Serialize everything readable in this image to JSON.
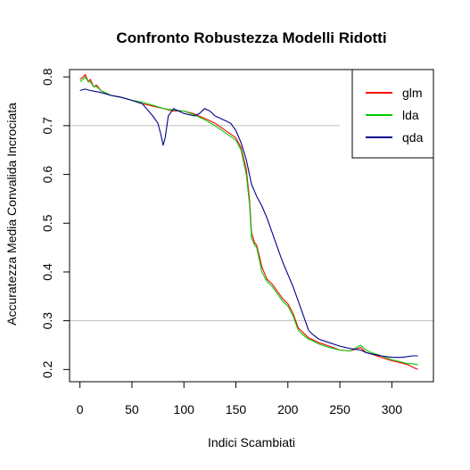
{
  "chart_data": {
    "type": "line",
    "title": "Confronto Robustezza Modelli Ridotti",
    "xlabel": "Indici Scambiati",
    "ylabel": "Accuratezza Media Convalida Incrociata",
    "xlim": [
      -10,
      340
    ],
    "ylim": [
      0.175,
      0.815
    ],
    "xticks": [
      0,
      50,
      100,
      150,
      200,
      250,
      300
    ],
    "yticks": [
      0.2,
      0.3,
      0.4,
      0.5,
      0.6,
      0.7,
      0.8
    ],
    "reference_lines": [
      {
        "y": 0.7,
        "x_end": 250,
        "color": "#bebebe"
      },
      {
        "y": 0.3,
        "color": "#bebebe"
      }
    ],
    "legend": {
      "position": "top-right"
    },
    "series": [
      {
        "name": "glm",
        "color": "#ff0000",
        "x": [
          0,
          3,
          5,
          8,
          10,
          13,
          16,
          20,
          25,
          30,
          40,
          50,
          60,
          70,
          80,
          90,
          100,
          110,
          120,
          130,
          140,
          150,
          155,
          160,
          163,
          165,
          168,
          170,
          175,
          180,
          185,
          190,
          195,
          200,
          205,
          210,
          215,
          220,
          225,
          230,
          240,
          250,
          260,
          270,
          275,
          280,
          290,
          300,
          310,
          315,
          320,
          325
        ],
        "y": [
          0.795,
          0.8,
          0.805,
          0.79,
          0.795,
          0.78,
          0.783,
          0.772,
          0.767,
          0.762,
          0.758,
          0.752,
          0.745,
          0.74,
          0.735,
          0.73,
          0.73,
          0.724,
          0.715,
          0.705,
          0.69,
          0.675,
          0.655,
          0.61,
          0.55,
          0.48,
          0.46,
          0.455,
          0.41,
          0.385,
          0.375,
          0.36,
          0.345,
          0.335,
          0.315,
          0.285,
          0.275,
          0.265,
          0.26,
          0.255,
          0.248,
          0.24,
          0.238,
          0.245,
          0.235,
          0.232,
          0.225,
          0.218,
          0.213,
          0.21,
          0.205,
          0.2
        ]
      },
      {
        "name": "lda",
        "color": "#00cc00",
        "x": [
          0,
          3,
          5,
          8,
          10,
          13,
          16,
          20,
          25,
          30,
          40,
          50,
          60,
          70,
          80,
          90,
          100,
          110,
          120,
          130,
          140,
          150,
          155,
          160,
          163,
          165,
          168,
          170,
          175,
          180,
          185,
          190,
          195,
          200,
          205,
          210,
          215,
          220,
          225,
          230,
          240,
          250,
          260,
          270,
          275,
          280,
          290,
          300,
          310,
          315,
          320,
          325
        ],
        "y": [
          0.79,
          0.795,
          0.8,
          0.79,
          0.79,
          0.78,
          0.78,
          0.772,
          0.767,
          0.762,
          0.758,
          0.752,
          0.748,
          0.742,
          0.735,
          0.732,
          0.73,
          0.722,
          0.712,
          0.7,
          0.685,
          0.67,
          0.65,
          0.6,
          0.54,
          0.47,
          0.455,
          0.45,
          0.4,
          0.38,
          0.37,
          0.355,
          0.34,
          0.33,
          0.31,
          0.28,
          0.27,
          0.262,
          0.258,
          0.252,
          0.245,
          0.24,
          0.238,
          0.25,
          0.24,
          0.235,
          0.228,
          0.22,
          0.215,
          0.212,
          0.212,
          0.21
        ]
      },
      {
        "name": "qda",
        "color": "#00008b",
        "x": [
          0,
          5,
          10,
          15,
          20,
          25,
          30,
          40,
          50,
          60,
          70,
          75,
          78,
          80,
          82,
          85,
          90,
          100,
          110,
          115,
          120,
          125,
          130,
          140,
          145,
          150,
          155,
          160,
          165,
          170,
          175,
          180,
          185,
          190,
          195,
          200,
          205,
          210,
          215,
          220,
          225,
          230,
          240,
          250,
          260,
          270,
          275,
          280,
          290,
          300,
          310,
          320,
          325
        ],
        "y": [
          0.772,
          0.775,
          0.772,
          0.77,
          0.768,
          0.765,
          0.762,
          0.758,
          0.752,
          0.745,
          0.72,
          0.705,
          0.68,
          0.66,
          0.675,
          0.72,
          0.735,
          0.725,
          0.72,
          0.725,
          0.735,
          0.73,
          0.72,
          0.71,
          0.705,
          0.69,
          0.665,
          0.63,
          0.58,
          0.555,
          0.535,
          0.51,
          0.48,
          0.45,
          0.42,
          0.395,
          0.37,
          0.34,
          0.31,
          0.28,
          0.27,
          0.262,
          0.255,
          0.248,
          0.243,
          0.24,
          0.235,
          0.232,
          0.228,
          0.225,
          0.225,
          0.228,
          0.228
        ]
      }
    ]
  }
}
